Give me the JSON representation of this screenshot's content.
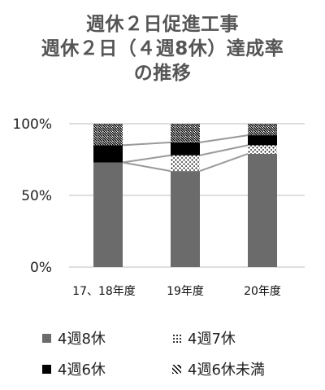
{
  "title_lines": [
    "週休２日促進工事",
    "週休２日（４週8休）達成率",
    "の推移"
  ],
  "chart_data": {
    "type": "bar",
    "stacked": true,
    "categories": [
      "17、18年度",
      "19年度",
      "20年度"
    ],
    "series": [
      {
        "name": "4週8休",
        "values": [
          73,
          67,
          79
        ],
        "color": "#6b6b6b",
        "pattern": "solid"
      },
      {
        "name": "4週7休",
        "values": [
          0,
          11,
          6
        ],
        "color": "#000000",
        "pattern": "dots"
      },
      {
        "name": "4週6休",
        "values": [
          12,
          9,
          7
        ],
        "color": "#000000",
        "pattern": "solid"
      },
      {
        "name": "4週6休未満",
        "values": [
          15,
          13,
          8
        ],
        "color": "#000000",
        "pattern": "hatch"
      }
    ],
    "y_ticks": [
      "0%",
      "50%",
      "100%"
    ],
    "ylim": [
      0,
      100
    ],
    "grid": true,
    "series_lines": true,
    "legend_position": "bottom"
  }
}
